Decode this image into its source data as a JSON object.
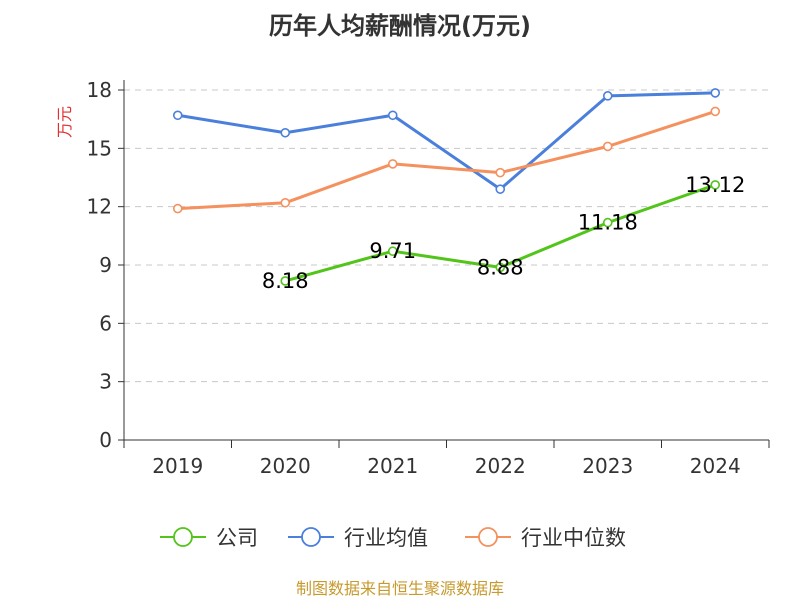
{
  "chart_data": {
    "type": "line",
    "title": "历年人均薪酬情况(万元)",
    "ylabel": "万元",
    "categories": [
      "2019",
      "2020",
      "2021",
      "2022",
      "2023",
      "2024"
    ],
    "ylim": [
      0,
      18
    ],
    "yticks": [
      0,
      3,
      6,
      9,
      12,
      15,
      18
    ],
    "grid": true,
    "legend_position": "bottom",
    "series": [
      {
        "name": "公司",
        "color": "#52c41a",
        "values": [
          null,
          8.18,
          9.71,
          8.88,
          11.18,
          13.12
        ],
        "labels": [
          "",
          "8.18",
          "9.71",
          "8.88",
          "11.18",
          "13.12"
        ]
      },
      {
        "name": "行业均值",
        "color": "#4a7fdc",
        "values": [
          16.7,
          15.8,
          16.7,
          12.9,
          17.7,
          17.85
        ]
      },
      {
        "name": "行业中位数",
        "color": "#f4915e",
        "values": [
          11.9,
          12.2,
          14.2,
          13.75,
          15.1,
          16.9
        ]
      }
    ]
  },
  "source": {
    "text": "制图数据来自恒生聚源数据库",
    "color": "#c79a2e"
  },
  "unit_color": "#e03030"
}
